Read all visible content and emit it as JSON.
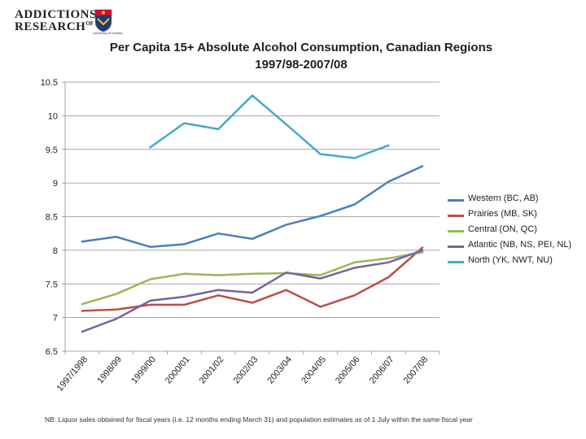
{
  "logo": {
    "line1": "ADDICTIONS",
    "line2": "RESEARCH",
    "superscript": "OF BC",
    "crest_caption": "University of Victoria"
  },
  "chart_data": {
    "type": "line",
    "title": "Per Capita 15+ Absolute Alcohol Consumption,  Canadian Regions",
    "subtitle": "1997/98-2007/08",
    "xlabel": "",
    "ylabel": "",
    "categories": [
      "1997/1998",
      "1998/99",
      "1999/00",
      "2000/01",
      "2001/02",
      "2002/03",
      "2003/04",
      "2004/05",
      "2005/06",
      "2006/07",
      "2007/08"
    ],
    "ylim": [
      6.5,
      10.5
    ],
    "yticks": [
      6.5,
      7,
      7.5,
      8,
      8.5,
      9,
      9.5,
      10,
      10.5
    ],
    "ytick_labels": [
      "6.5",
      "7",
      "7.5",
      "8",
      "8.5",
      "9",
      "9.5",
      "10",
      "10.5"
    ],
    "grid": "horizontal",
    "legend_position": "right",
    "series": [
      {
        "name": "Western (BC, AB)",
        "color": "#4a7ebb",
        "values": [
          8.13,
          8.2,
          8.05,
          8.09,
          8.25,
          8.17,
          8.38,
          8.51,
          8.68,
          9.02,
          9.25
        ]
      },
      {
        "name": "Prairies (MB, SK)",
        "color": "#be4b48",
        "values": [
          7.1,
          7.12,
          7.19,
          7.19,
          7.33,
          7.22,
          7.41,
          7.16,
          7.33,
          7.6,
          8.04
        ]
      },
      {
        "name": "Central (ON, QC)",
        "color": "#98b954",
        "values": [
          7.2,
          7.35,
          7.57,
          7.65,
          7.63,
          7.65,
          7.66,
          7.63,
          7.82,
          7.88,
          7.97
        ]
      },
      {
        "name": "Atlantic (NB, NS, PEI, NL)",
        "color": "#7d60a0",
        "values": [
          6.79,
          6.98,
          7.25,
          7.31,
          7.41,
          7.37,
          7.67,
          7.58,
          7.74,
          7.82,
          8.0
        ]
      },
      {
        "name": "North (YK, NWT, NU)",
        "color": "#46aac5",
        "values": [
          null,
          null,
          9.53,
          9.89,
          9.8,
          10.3,
          9.87,
          9.43,
          9.37,
          9.56,
          null
        ]
      }
    ]
  },
  "footnote": "NB: Liquor sales obtained for fiscal years (i.e. 12 months ending March 31) and population estimates as of 1 July within the same fiscal year"
}
